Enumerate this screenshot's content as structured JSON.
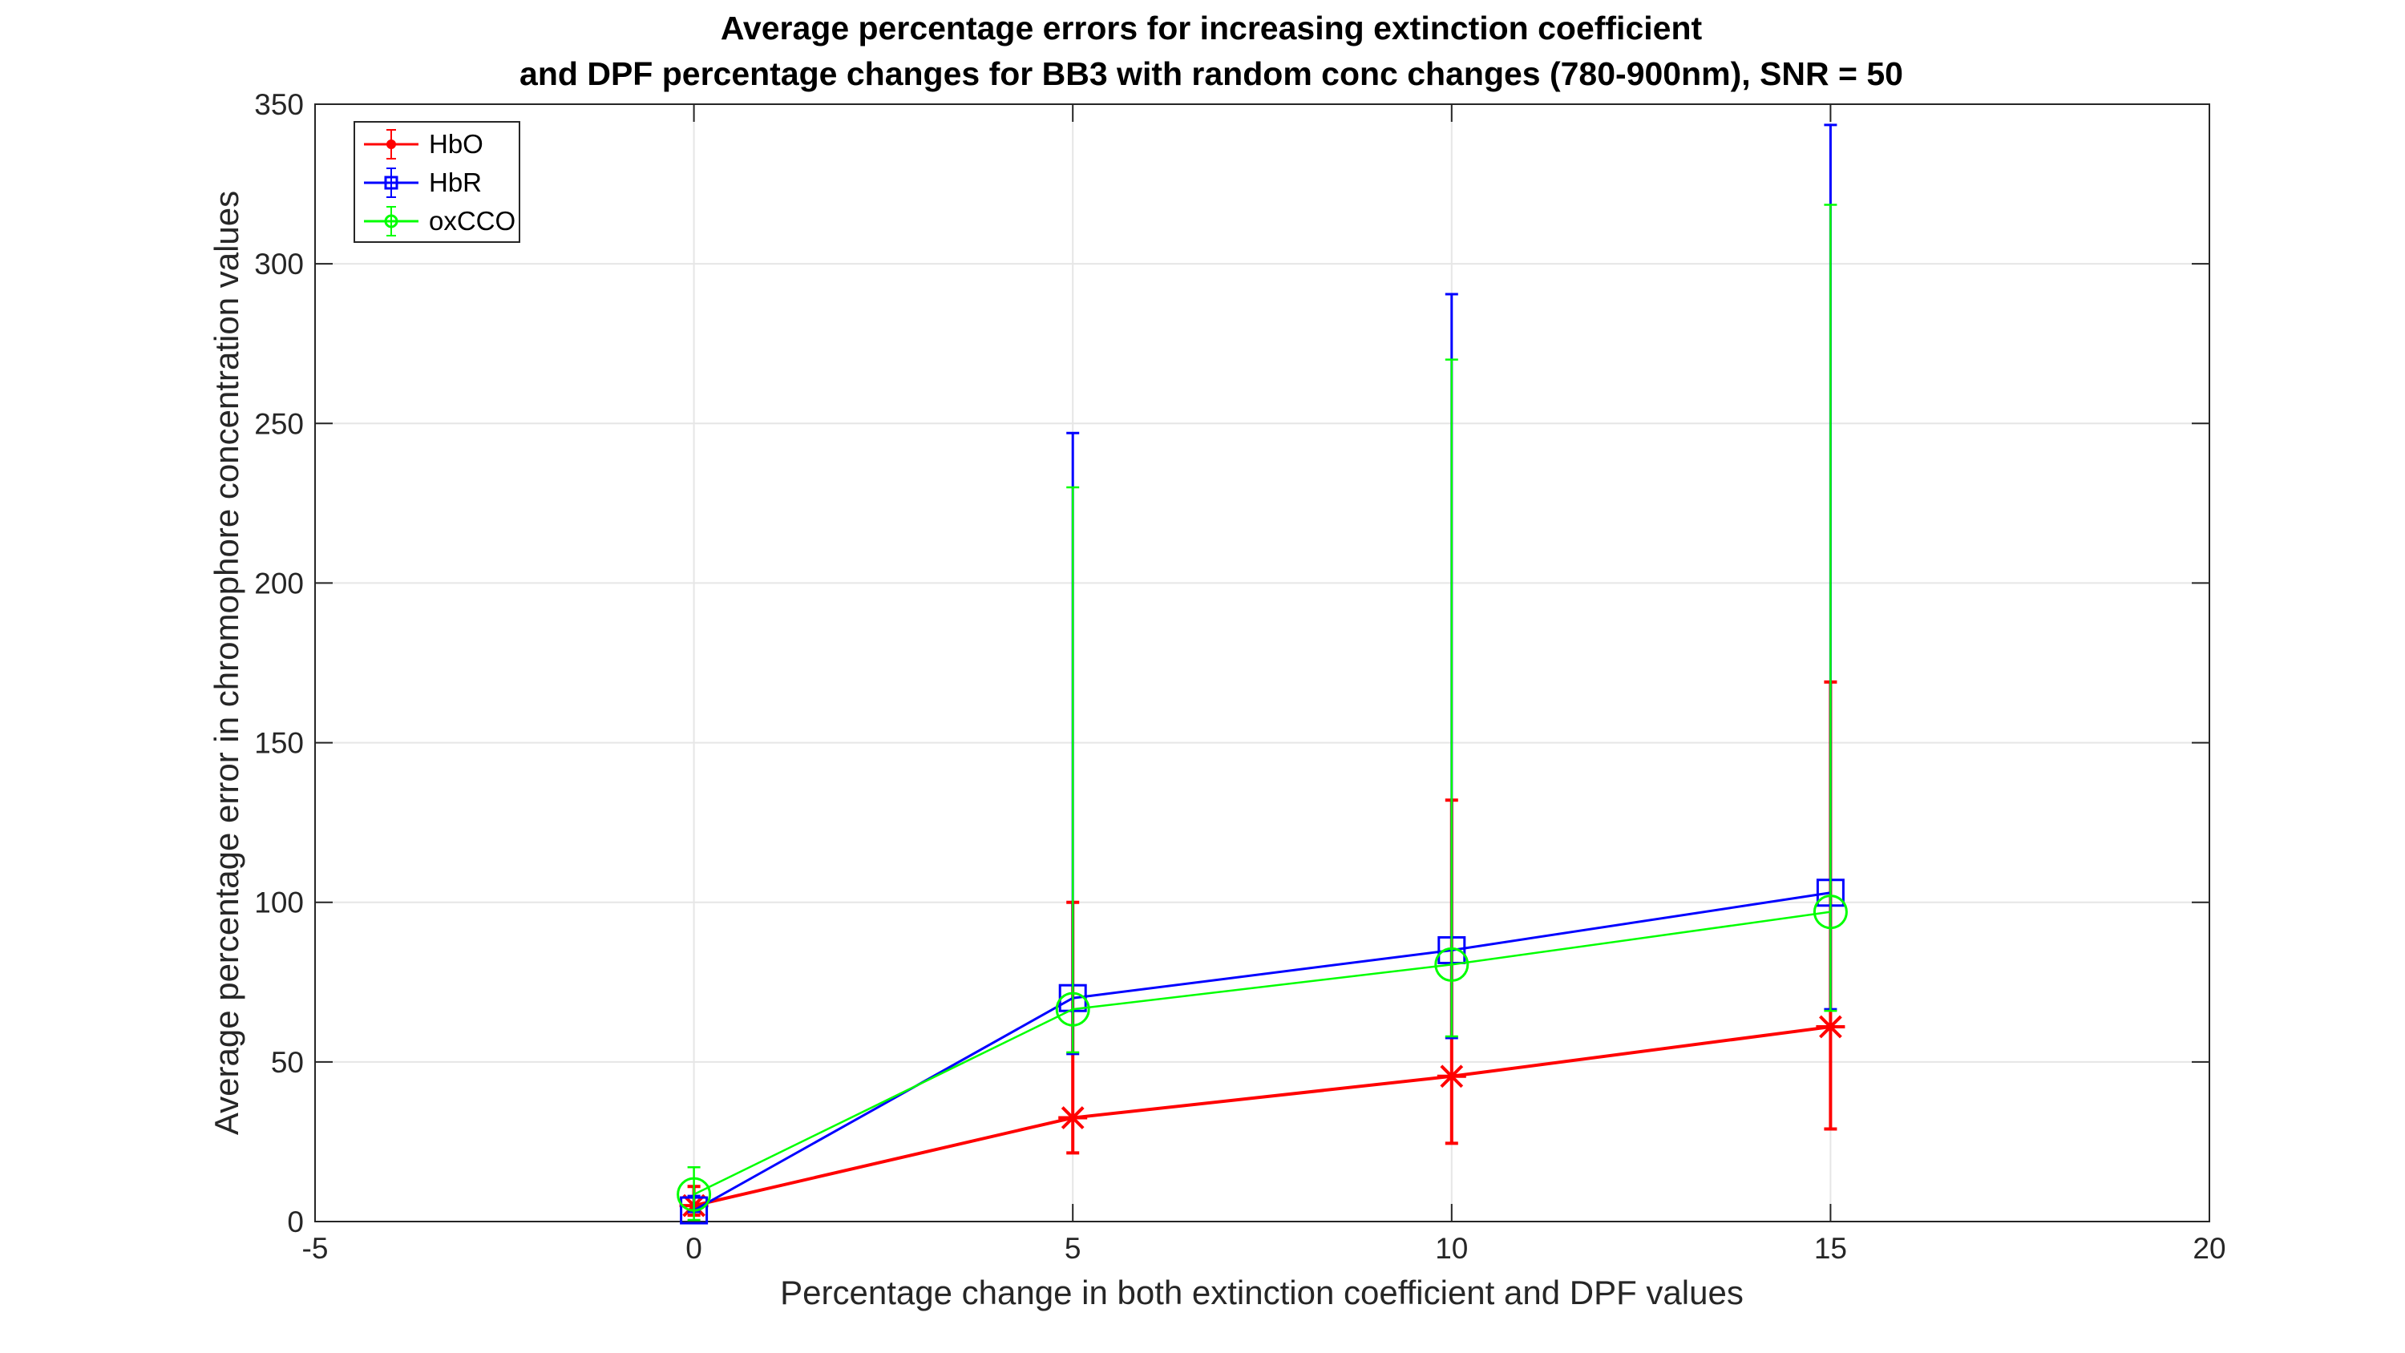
{
  "chart_data": {
    "type": "line",
    "title": "Average percentage errors for increasing extinction coefficient",
    "subtitle": "and DPF percentage changes for BB3 with random conc changes (780-900nm), SNR = 50",
    "xlabel": "Percentage change in both extinction coefficient and DPF values",
    "ylabel": "Average percentage error in chromophore concentration values",
    "xlim": [
      -5,
      20
    ],
    "ylim": [
      0,
      350
    ],
    "xticks": [
      -5,
      0,
      5,
      10,
      15,
      20
    ],
    "yticks": [
      0,
      50,
      100,
      150,
      200,
      250,
      300,
      350
    ],
    "grid": true,
    "legend_position": "top-left",
    "x": [
      0,
      5,
      10,
      15
    ],
    "series": [
      {
        "name": "HbO",
        "color": "#ff0000",
        "marker": "asterisk",
        "legend_marker": "dot",
        "values": [
          5,
          32.5,
          45.5,
          61
        ],
        "error_low": [
          2,
          21.5,
          24.5,
          29
        ],
        "error_high": [
          11,
          100,
          132,
          169
        ]
      },
      {
        "name": "HbR",
        "color": "#0000ff",
        "marker": "square",
        "legend_marker": "square",
        "values": [
          3.5,
          70,
          85,
          103
        ],
        "error_low": [
          3,
          52.5,
          57.5,
          66.5
        ],
        "error_high": [
          8,
          247,
          290.5,
          343.5
        ]
      },
      {
        "name": "oxCCO",
        "color": "#00ff00",
        "marker": "circle",
        "legend_marker": "circle",
        "values": [
          8.5,
          66.5,
          80.5,
          97
        ],
        "error_low": [
          0.5,
          53,
          58,
          66
        ],
        "error_high": [
          17,
          230,
          270,
          318.5
        ]
      }
    ]
  }
}
